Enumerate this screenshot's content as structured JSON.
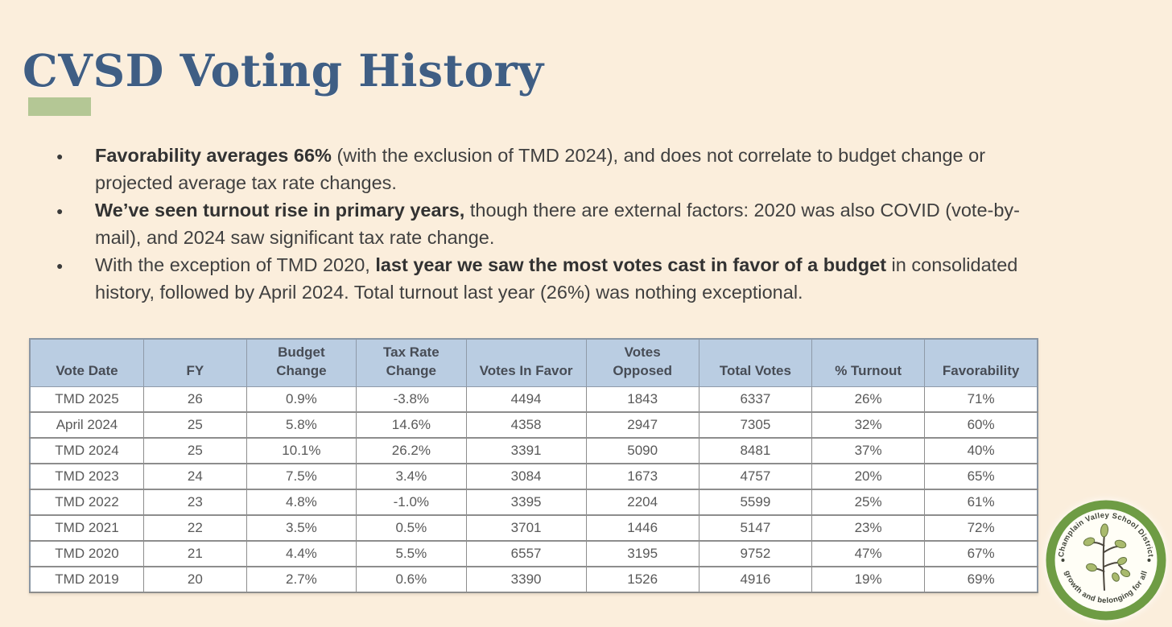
{
  "colors": {
    "background": "#fbeedc",
    "title": "#3f5e84",
    "accent_bar": "#b4c795",
    "table_header_bg": "#bacde2",
    "logo_ring": "#6e9c44"
  },
  "slide": {
    "title": "CVSD Voting History"
  },
  "bullets": [
    {
      "segments": [
        {
          "bold": true,
          "text": "Favorability averages 66%"
        },
        {
          "bold": false,
          "text": " (with the exclusion of TMD 2024), and does not correlate to budget change or projected average tax rate changes."
        }
      ]
    },
    {
      "segments": [
        {
          "bold": true,
          "text": "We’ve seen turnout rise in primary years,"
        },
        {
          "bold": false,
          "text": " though there are external factors: 2020 was also COVID (vote-by-mail), and 2024 saw significant tax rate change."
        }
      ]
    },
    {
      "segments": [
        {
          "bold": false,
          "text": "With the exception of TMD 2020, "
        },
        {
          "bold": true,
          "text": "last year we saw the most votes cast in favor of a budget"
        },
        {
          "bold": false,
          "text": " in consolidated history, followed by April 2024. Total turnout last year (26%) was nothing exceptional."
        }
      ]
    }
  ],
  "table": {
    "headers": [
      "Vote Date",
      "FY",
      "Budget\nChange",
      "Tax Rate\nChange",
      "Votes In Favor",
      "Votes\nOpposed",
      "Total Votes",
      "% Turnout",
      "Favorability"
    ],
    "rows": [
      [
        "TMD 2025",
        "26",
        "0.9%",
        "-3.8%",
        "4494",
        "1843",
        "6337",
        "26%",
        "71%"
      ],
      [
        "April 2024",
        "25",
        "5.8%",
        "14.6%",
        "4358",
        "2947",
        "7305",
        "32%",
        "60%"
      ],
      [
        "TMD 2024",
        "25",
        "10.1%",
        "26.2%",
        "3391",
        "5090",
        "8481",
        "37%",
        "40%"
      ],
      [
        "TMD 2023",
        "24",
        "7.5%",
        "3.4%",
        "3084",
        "1673",
        "4757",
        "20%",
        "65%"
      ],
      [
        "TMD 2022",
        "23",
        "4.8%",
        "-1.0%",
        "3395",
        "2204",
        "5599",
        "25%",
        "61%"
      ],
      [
        "TMD 2021",
        "22",
        "3.5%",
        "0.5%",
        "3701",
        "1446",
        "5147",
        "23%",
        "72%"
      ],
      [
        "TMD 2020",
        "21",
        "4.4%",
        "5.5%",
        "6557",
        "3195",
        "9752",
        "47%",
        "67%"
      ],
      [
        "TMD 2019",
        "20",
        "2.7%",
        "0.6%",
        "3390",
        "1526",
        "4916",
        "19%",
        "69%"
      ]
    ]
  },
  "logo": {
    "top_text": "Champlain Valley School District",
    "bottom_text": "growth and belonging for all"
  }
}
